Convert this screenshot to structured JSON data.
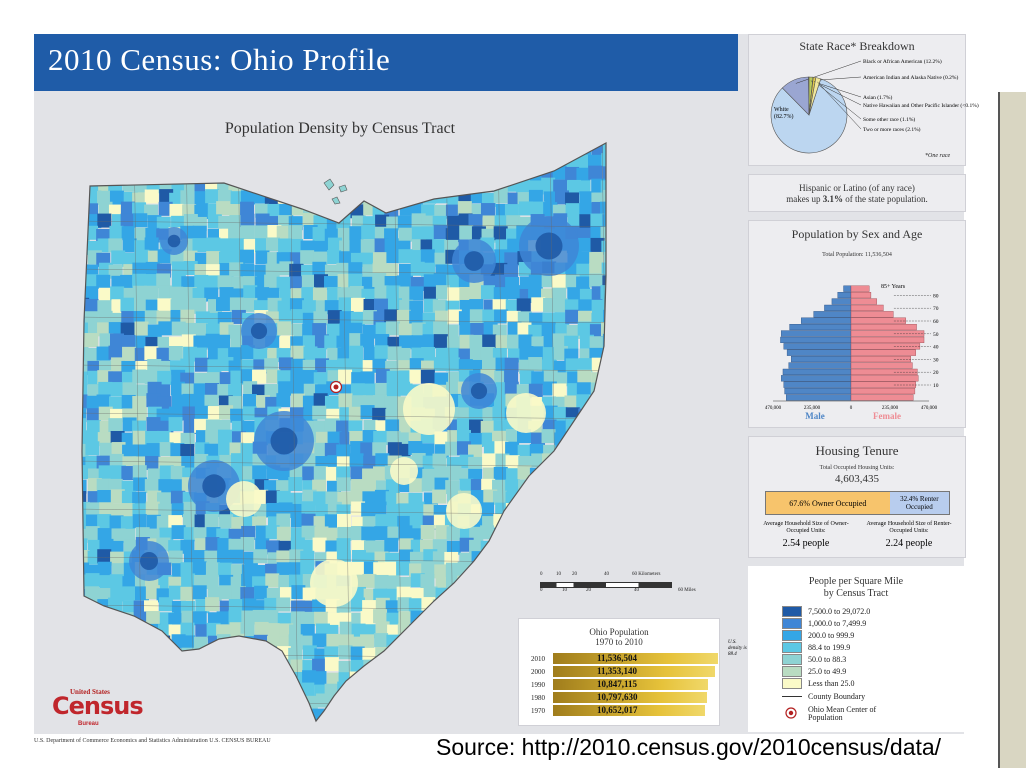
{
  "header": {
    "title": "2010 Census: Ohio Profile"
  },
  "map": {
    "title": "Population Density by Census Tract",
    "scale_km": [
      "0",
      "10",
      "20",
      "40",
      "60 Kilometers"
    ],
    "scale_mi": [
      "0",
      "10",
      "20",
      "40",
      "60 Miles"
    ],
    "us_density_label": "U.S. density is 88.4"
  },
  "race": {
    "title": "State Race* Breakdown",
    "note": "*One race",
    "slices": [
      {
        "label": "White",
        "value": "(82.7%)",
        "pct": 82.7,
        "color": "#bcd6f0"
      },
      {
        "label": "Black or African American",
        "value": "(12.2%)",
        "pct": 12.2,
        "color": "#9aa6d2"
      },
      {
        "label": "American Indian and Alaska Native",
        "value": "(0.2%)",
        "pct": 0.2,
        "color": "#2e8b57"
      },
      {
        "label": "Asian",
        "value": "(1.7%)",
        "pct": 1.7,
        "color": "#b8c95a"
      },
      {
        "label": "Native Hawaiian and Other Pacific Islander",
        "value": "(<0.1%)",
        "pct": 0.1,
        "color": "#444444"
      },
      {
        "label": "Some other race",
        "value": "(1.1%)",
        "pct": 1.1,
        "color": "#e2c94a"
      },
      {
        "label": "Two or more races",
        "value": "(2.1%)",
        "pct": 2.1,
        "color": "#f1e79a"
      }
    ]
  },
  "hispanic": {
    "line1": "Hispanic or Latino (of any race)",
    "line2_pre": "makes up ",
    "line2_bold": "3.1%",
    "line2_post": " of the state population."
  },
  "pyramid": {
    "title": "Population by Sex and Age",
    "total": "Total Population: 11,536,504",
    "top_label": "85+ Years",
    "age_ticks": [
      "80",
      "70",
      "60",
      "50",
      "40",
      "30",
      "20",
      "10"
    ],
    "x_ticks": [
      "470,000",
      "235,000",
      "0",
      "235,000",
      "470,000"
    ],
    "male_label": "Male",
    "female_label": "Female",
    "male_color": "#4f86c6",
    "female_color": "#ee8c94",
    "male": [
      390000,
      400000,
      405000,
      420000,
      410000,
      375000,
      360000,
      385000,
      405000,
      425000,
      420000,
      370000,
      300000,
      225000,
      160000,
      115000,
      80000,
      45000
    ],
    "female": [
      375000,
      385000,
      390000,
      405000,
      400000,
      370000,
      360000,
      390000,
      415000,
      440000,
      440000,
      395000,
      330000,
      255000,
      195000,
      155000,
      120000,
      110000
    ]
  },
  "housing": {
    "title": "Housing Tenure",
    "total_label": "Total Occupied Housing Units:",
    "total_value": "4,603,435",
    "owner_label": "67.6% Owner Occupied",
    "renter_label": "32.4% Renter Occupied",
    "owner_pct": 67.6,
    "owner_color": "#f7c46c",
    "renter_color": "#b8cdee",
    "owner_size_label": "Average Household Size of Owner-Occupied Units:",
    "owner_size_value": "2.54 people",
    "renter_size_label": "Average Household Size of Renter-Occupied Units:",
    "renter_size_value": "2.24 people"
  },
  "density_legend": {
    "title_line1": "People per Square Mile",
    "title_line2": "by Census Tract",
    "classes": [
      {
        "label": "7,500.0 to 29,072.0",
        "color": "#1f5aa6"
      },
      {
        "label": "1,000.0 to 7,499.9",
        "color": "#3f86d6"
      },
      {
        "label": "200.0 to 999.9",
        "color": "#34a6e6"
      },
      {
        "label": "88.4 to 199.9",
        "color": "#5cc8e4"
      },
      {
        "label": "50.0 to 88.3",
        "color": "#8ed3d3"
      },
      {
        "label": "25.0 to 49.9",
        "color": "#b9dcc2"
      },
      {
        "label": "Less than 25.0",
        "color": "#fafac8"
      }
    ],
    "county_boundary": "County Boundary",
    "mean_center": "Ohio Mean Center of Population"
  },
  "ohio_population": {
    "title_line1": "Ohio Population",
    "title_line2": "1970 to 2010",
    "rows": [
      {
        "year": "2010",
        "value": "11,536,504",
        "num": 11536504
      },
      {
        "year": "2000",
        "value": "11,353,140",
        "num": 11353140
      },
      {
        "year": "1990",
        "value": "10,847,115",
        "num": 10847115
      },
      {
        "year": "1980",
        "value": "10,797,630",
        "num": 10797630
      },
      {
        "year": "1970",
        "value": "10,652,017",
        "num": 10652017
      }
    ]
  },
  "footer": {
    "logo_top": "United States",
    "logo_main": "Census",
    "logo_bottom": "Bureau",
    "agency": "U.S. Department of Commerce   Economics and Statistics Administration   U.S. CENSUS BUREAU",
    "source": "Source:  http://2010.census.gov/2010census/data/"
  }
}
